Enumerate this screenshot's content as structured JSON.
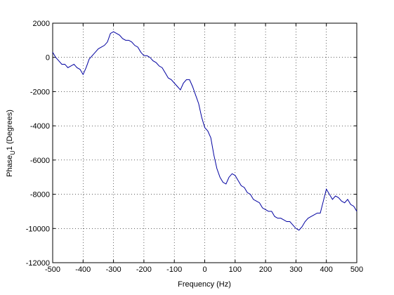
{
  "chart_data": {
    "type": "line",
    "xlabel": "Frequency (Hz)",
    "ylabel": [
      "Phase",
      "U",
      "1 (Degrees)"
    ],
    "x": [
      -500,
      -490,
      -480,
      -470,
      -460,
      -450,
      -440,
      -430,
      -420,
      -410,
      -400,
      -390,
      -380,
      -370,
      -360,
      -350,
      -340,
      -330,
      -320,
      -310,
      -300,
      -290,
      -280,
      -270,
      -260,
      -250,
      -240,
      -230,
      -220,
      -210,
      -200,
      -190,
      -180,
      -170,
      -160,
      -150,
      -140,
      -130,
      -120,
      -110,
      -100,
      -90,
      -80,
      -70,
      -60,
      -50,
      -40,
      -30,
      -20,
      -10,
      0,
      10,
      20,
      30,
      40,
      50,
      60,
      70,
      80,
      90,
      100,
      110,
      120,
      130,
      140,
      150,
      160,
      170,
      180,
      190,
      200,
      210,
      220,
      230,
      240,
      250,
      260,
      270,
      280,
      290,
      300,
      310,
      320,
      330,
      340,
      350,
      360,
      370,
      380,
      390,
      400,
      410,
      420,
      430,
      440,
      450,
      460,
      470,
      480,
      490,
      500
    ],
    "series": [
      {
        "name": "Phase",
        "color": "#0000a0",
        "values": [
          300,
          0,
          -200,
          -400,
          -400,
          -600,
          -500,
          -400,
          -600,
          -700,
          -1000,
          -600,
          -100,
          100,
          300,
          500,
          600,
          700,
          900,
          1400,
          1500,
          1400,
          1300,
          1100,
          1000,
          1000,
          900,
          700,
          600,
          300,
          100,
          100,
          0,
          -200,
          -300,
          -500,
          -600,
          -900,
          -1200,
          -1300,
          -1500,
          -1700,
          -1900,
          -1500,
          -1300,
          -1300,
          -1700,
          -2200,
          -2700,
          -3500,
          -4100,
          -4300,
          -4700,
          -5700,
          -6500,
          -7000,
          -7300,
          -7400,
          -7000,
          -6800,
          -6900,
          -7200,
          -7500,
          -7600,
          -7900,
          -8000,
          -8300,
          -8400,
          -8500,
          -8800,
          -8900,
          -9000,
          -9000,
          -9300,
          -9400,
          -9400,
          -9500,
          -9600,
          -9600,
          -9800,
          -10000,
          -10100,
          -9900,
          -9600,
          -9400,
          -9300,
          -9200,
          -9100,
          -9100,
          -8400,
          -7700,
          -8000,
          -8300,
          -8100,
          -8200,
          -8400,
          -8500,
          -8300,
          -8600,
          -8700,
          -9000
        ]
      }
    ],
    "xlim": [
      -500,
      500
    ],
    "xticks": [
      -500,
      -400,
      -300,
      -200,
      -100,
      0,
      100,
      200,
      300,
      400,
      500
    ],
    "ylim": [
      -12000,
      2000
    ],
    "yticks": [
      -12000,
      -10000,
      -8000,
      -6000,
      -4000,
      -2000,
      0,
      2000
    ],
    "grid": true
  }
}
